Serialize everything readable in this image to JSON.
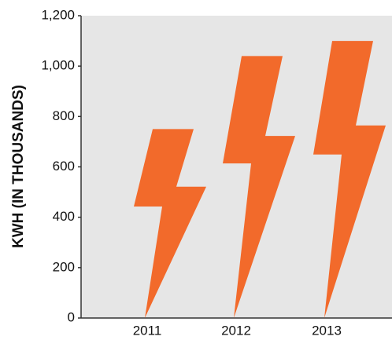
{
  "chart_data": {
    "type": "pictograph",
    "y_label": "KWH (IN THOUSANDS)",
    "categories": [
      "2011",
      "2012",
      "2013"
    ],
    "values": [
      750,
      1040,
      1100
    ],
    "color": "#f26a2b",
    "ylim": [
      0,
      1200
    ],
    "yticks": [
      0,
      200,
      400,
      600,
      800,
      {
        "value": 1000,
        "label": "1,000"
      },
      {
        "value": 1200,
        "label": "1,200"
      }
    ]
  }
}
